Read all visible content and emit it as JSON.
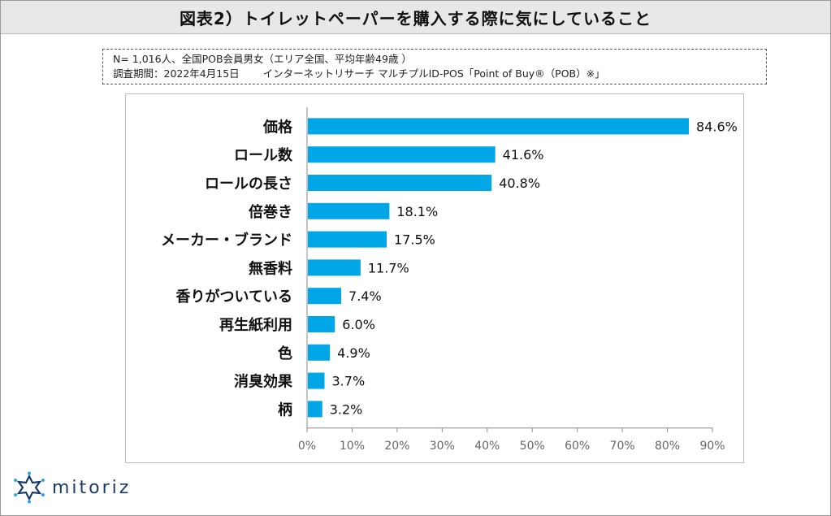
{
  "header": {
    "title": "図表2）トイレットペーパーを購入する際に気にしていること"
  },
  "note": {
    "line1": "N= 1,016人、全国POB会員男女（エリア全国、平均年齢49歳 ）",
    "line2": "調査期間：2022年4月15日　　 インターネットリサーチ マルチプルID-POS「Point of Buy®（POB）※」"
  },
  "brand": {
    "name": "mitoriz",
    "icon": "starburst-logo-icon",
    "color": "#1a3b6e"
  },
  "colors": {
    "bar": "#00a6e6",
    "axis": "#888888"
  },
  "chart_data": {
    "type": "bar",
    "orientation": "horizontal",
    "categories": [
      "価格",
      "ロール数",
      "ロールの長さ",
      "倍巻き",
      "メーカー・ブランド",
      "無香料",
      "香りがついている",
      "再生紙利用",
      "色",
      "消臭効果",
      "柄"
    ],
    "values": [
      84.6,
      41.6,
      40.8,
      18.1,
      17.5,
      11.7,
      7.4,
      6.0,
      4.9,
      3.7,
      3.2
    ],
    "value_labels": [
      "84.6%",
      "41.6%",
      "40.8%",
      "18.1%",
      "17.5%",
      "11.7%",
      "7.4%",
      "6.0%",
      "4.9%",
      "3.7%",
      "3.2%"
    ],
    "xlim": [
      0,
      90
    ],
    "xticks": [
      0,
      10,
      20,
      30,
      40,
      50,
      60,
      70,
      80,
      90
    ],
    "xtick_labels": [
      "0%",
      "10%",
      "20%",
      "30%",
      "40%",
      "50%",
      "60%",
      "70%",
      "80%",
      "90%"
    ],
    "grid": false,
    "legend": "none"
  }
}
